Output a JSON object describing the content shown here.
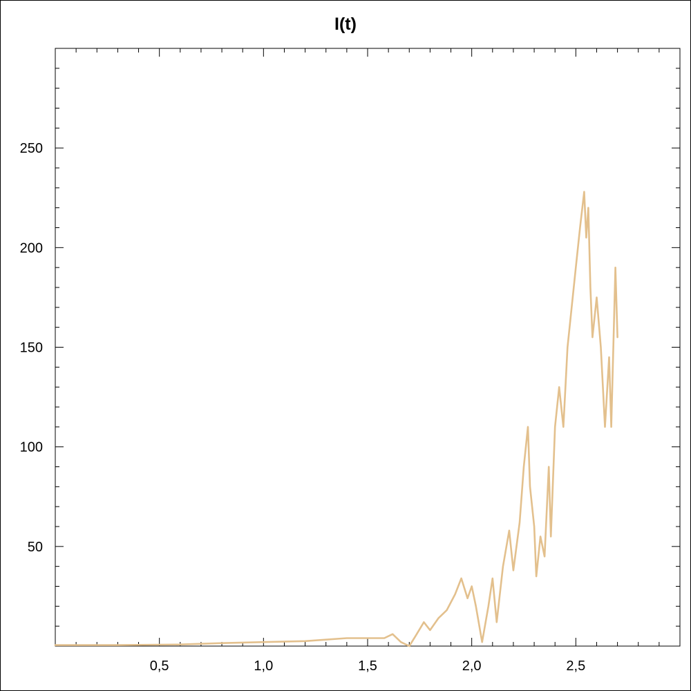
{
  "chart_data": {
    "type": "line",
    "title": "I(t)",
    "xlabel": "",
    "ylabel": "",
    "xlim": [
      0,
      3.0
    ],
    "ylim": [
      0,
      300
    ],
    "x_major_ticks": [
      0.5,
      1.0,
      1.5,
      2.0,
      2.5
    ],
    "x_tick_labels": [
      "0,5",
      "1,0",
      "1,5",
      "2,0",
      "2,5"
    ],
    "x_minor_step": 0.1,
    "y_major_ticks": [
      50,
      100,
      150,
      200,
      250
    ],
    "y_tick_labels": [
      "50",
      "100",
      "150",
      "200",
      "250"
    ],
    "y_minor_step": 10,
    "grid": false,
    "series": [
      {
        "color": "#e3c08d",
        "x": [
          0,
          0.3,
          0.6,
          0.8,
          1.0,
          1.2,
          1.4,
          1.5,
          1.58,
          1.62,
          1.66,
          1.7,
          1.73,
          1.77,
          1.8,
          1.84,
          1.88,
          1.92,
          1.95,
          1.98,
          2.0,
          2.02,
          2.05,
          2.08,
          2.1,
          2.12,
          2.15,
          2.18,
          2.2,
          2.23,
          2.25,
          2.27,
          2.28,
          2.3,
          2.31,
          2.33,
          2.35,
          2.37,
          2.38,
          2.4,
          2.42,
          2.44,
          2.46,
          2.48,
          2.5,
          2.52,
          2.54,
          2.55,
          2.56,
          2.57,
          2.58,
          2.6,
          2.62,
          2.64,
          2.66,
          2.67,
          2.69,
          2.7
        ],
        "y": [
          0.5,
          0.5,
          0.8,
          1.5,
          2,
          2.5,
          4,
          4,
          4,
          6,
          2,
          0,
          5,
          12,
          8,
          14,
          18,
          26,
          34,
          24,
          30,
          20,
          2,
          20,
          34,
          12,
          40,
          58,
          38,
          62,
          90,
          110,
          80,
          60,
          35,
          55,
          45,
          90,
          55,
          110,
          130,
          110,
          150,
          170,
          190,
          210,
          228,
          205,
          220,
          180,
          155,
          175,
          150,
          110,
          145,
          110,
          190,
          155
        ]
      }
    ]
  }
}
